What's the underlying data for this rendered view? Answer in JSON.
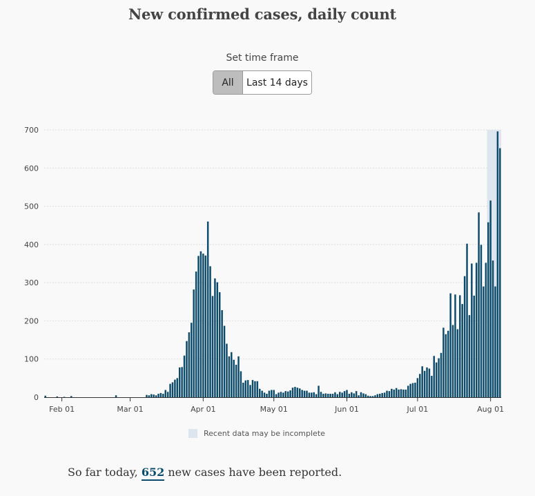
{
  "header": {
    "title": "New confirmed cases, daily count"
  },
  "time_frame": {
    "label": "Set time frame",
    "options": [
      "All",
      "Last 14 days"
    ],
    "selected": "All"
  },
  "legend": {
    "incomplete_label": "Recent data may be incomplete",
    "incomplete_color": "#dde5ee"
  },
  "summary": {
    "prefix": "So far today,",
    "count": "652",
    "suffix": "new cases have been reported."
  },
  "colors": {
    "bar": "#0c4a6a",
    "grid": "#dddddd",
    "axis": "#333333"
  },
  "chart_data": {
    "type": "bar",
    "title": "New confirmed cases, daily count",
    "xlabel": "",
    "ylabel": "",
    "ylim": [
      0,
      700
    ],
    "yticks": [
      0,
      100,
      200,
      300,
      400,
      500,
      600,
      700
    ],
    "grid": true,
    "start_date": "2020-01-25",
    "xticks": [
      {
        "label": "Feb 01",
        "date": "2020-02-01"
      },
      {
        "label": "Mar 01",
        "date": "2020-03-01"
      },
      {
        "label": "Apr 01",
        "date": "2020-04-01"
      },
      {
        "label": "May 01",
        "date": "2020-05-01"
      },
      {
        "label": "Jun 01",
        "date": "2020-06-01"
      },
      {
        "label": "Jul 01",
        "date": "2020-07-01"
      },
      {
        "label": "Aug 01",
        "date": "2020-08-01"
      }
    ],
    "incomplete_from": "2020-07-31",
    "values": [
      4,
      0,
      0,
      0,
      0,
      2,
      0,
      0,
      1,
      0,
      0,
      3,
      0,
      0,
      0,
      0,
      0,
      0,
      0,
      0,
      0,
      0,
      0,
      0,
      0,
      0,
      0,
      0,
      0,
      0,
      5,
      0,
      0,
      0,
      0,
      0,
      0,
      0,
      0,
      0,
      0,
      0,
      0,
      6,
      5,
      8,
      7,
      5,
      9,
      11,
      9,
      19,
      14,
      35,
      39,
      46,
      50,
      78,
      79,
      109,
      147,
      170,
      195,
      282,
      329,
      370,
      382,
      376,
      371,
      460,
      343,
      265,
      311,
      301,
      275,
      228,
      187,
      140,
      107,
      118,
      98,
      85,
      107,
      68,
      38,
      44,
      45,
      32,
      45,
      42,
      42,
      22,
      17,
      12,
      9,
      17,
      19,
      19,
      8,
      12,
      14,
      12,
      16,
      15,
      18,
      25,
      27,
      25,
      23,
      19,
      17,
      17,
      12,
      12,
      13,
      8,
      30,
      14,
      9,
      10,
      9,
      9,
      9,
      13,
      8,
      14,
      12,
      16,
      19,
      9,
      13,
      10,
      16,
      5,
      13,
      10,
      8,
      4,
      3,
      3,
      5,
      8,
      9,
      11,
      12,
      17,
      16,
      22,
      20,
      24,
      20,
      21,
      20,
      20,
      30,
      35,
      37,
      38,
      50,
      61,
      81,
      69,
      78,
      75,
      56,
      108,
      91,
      102,
      116,
      182,
      165,
      174,
      272,
      189,
      269,
      178,
      267,
      244,
      317,
      402,
      215,
      350,
      266,
      352,
      484,
      399,
      290,
      352,
      458,
      515,
      358,
      290,
      696,
      652
    ]
  }
}
